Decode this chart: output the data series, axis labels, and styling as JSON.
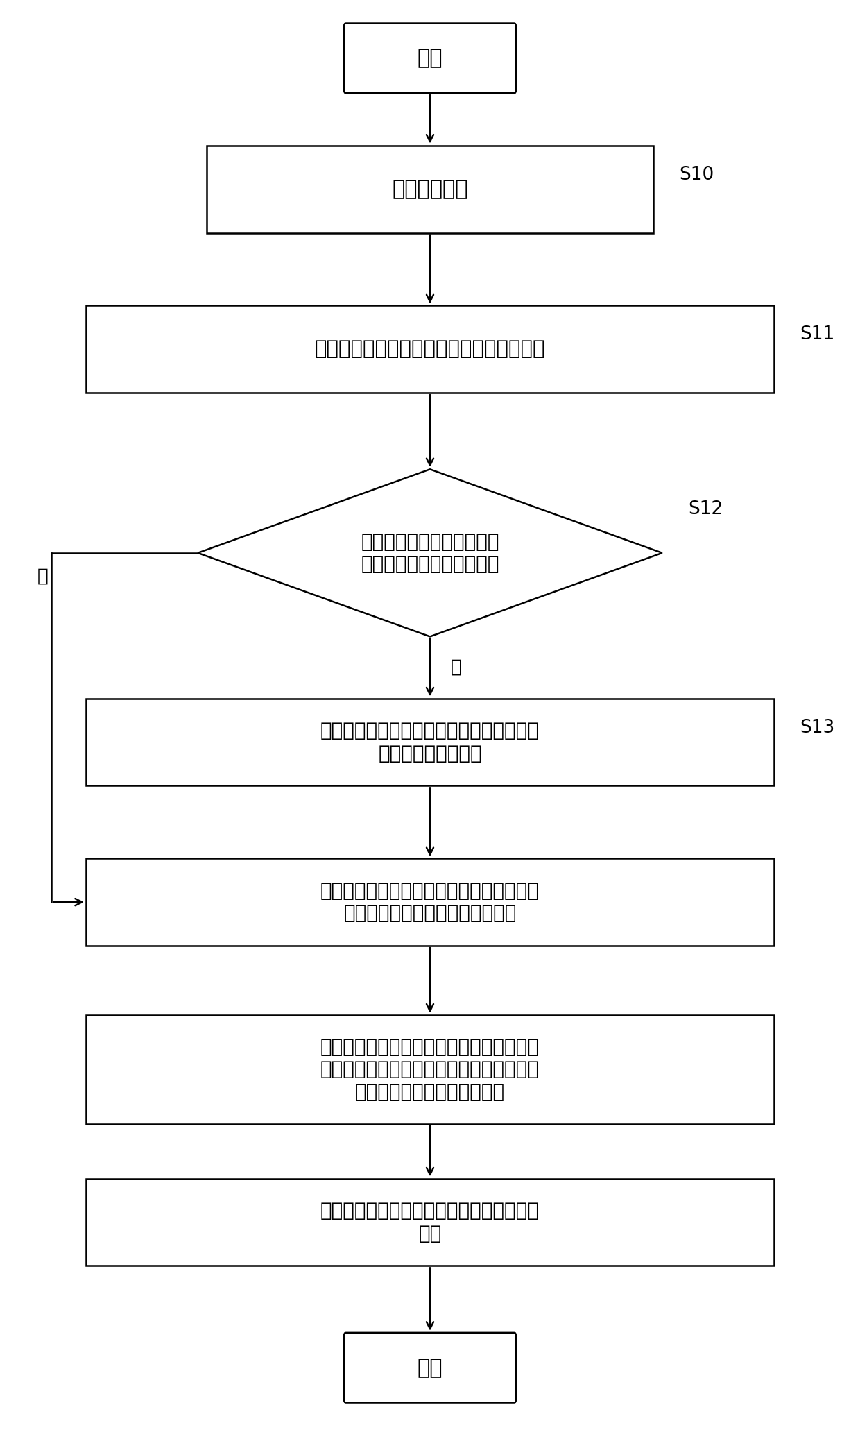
{
  "bg_color": "#ffffff",
  "nodes": {
    "start": {
      "text": "开始",
      "fontsize": 22
    },
    "S10": {
      "text": "接收模型对象",
      "fontsize": 22,
      "label": "S10"
    },
    "S11": {
      "text": "将模型对象的基础参数值存储至第一参数表",
      "fontsize": 21,
      "label": "S11"
    },
    "S12": {
      "text": "判断模型对象是否包括第一\n参数表中未定义的扩展参数",
      "fontsize": 20,
      "label": "S12"
    },
    "S13": {
      "text": "将扩展参数的定义及参数值以纵向扩展的形\n式存储至第二参数表",
      "fontsize": 20,
      "label": "S13"
    },
    "S14": {
      "text": "当在预设时间内所扩展参数的定义写入的次\n数大于预设值时，新建第三参数表",
      "fontsize": 20
    },
    "S15": {
      "text": "将第一参数表中的内容复制入第三参数表，\n并将第二参数表中与所述定义对应的内容以\n列扩展的形式写入第三参数表",
      "fontsize": 20
    },
    "S16": {
      "text": "保存第三参数表并以第三参数表替换第一参\n数表",
      "fontsize": 20
    },
    "end": {
      "text": "结束",
      "fontsize": 22
    }
  },
  "yes_label": "是",
  "no_label": "否",
  "label_fontsize": 19
}
